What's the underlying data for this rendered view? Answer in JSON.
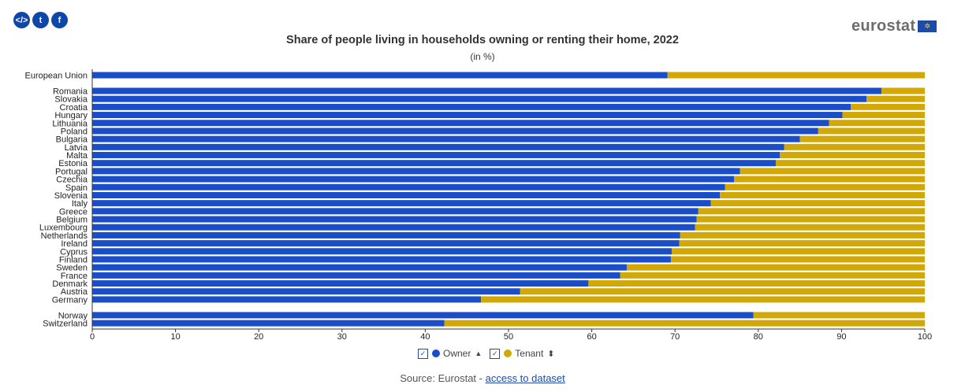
{
  "share_icons": [
    {
      "name": "embed-icon",
      "glyph": "</>"
    },
    {
      "name": "twitter-icon",
      "glyph": "t"
    },
    {
      "name": "facebook-icon",
      "glyph": "f"
    }
  ],
  "logo": {
    "text": "eurostat"
  },
  "colors": {
    "owner": "#1a4ec8",
    "tenant": "#d2a806"
  },
  "legend": {
    "owner": "Owner",
    "tenant": "Tenant",
    "owner_sort": "▲",
    "tenant_sort": "⬍",
    "check": "✓"
  },
  "source": {
    "prefix": "Source: Eurostat - ",
    "link": "access to dataset"
  },
  "chart_data": {
    "type": "bar",
    "orientation": "horizontal",
    "stacked": true,
    "title": "Share of people living in households owning or renting their home, 2022",
    "subtitle": "(in %)",
    "xlim": [
      0,
      100
    ],
    "xticks": [
      0,
      10,
      20,
      30,
      40,
      50,
      60,
      70,
      80,
      90,
      100
    ],
    "grid": false,
    "legend_position": "bottom",
    "groups": [
      {
        "categories": [
          "European Union"
        ]
      },
      {
        "categories": [
          "Romania",
          "Slovakia",
          "Croatia",
          "Hungary",
          "Lithuania",
          "Poland",
          "Bulgaria",
          "Latvia",
          "Malta",
          "Estonia",
          "Portugal",
          "Czechia",
          "Spain",
          "Slovenia",
          "Italy",
          "Greece",
          "Belgium",
          "Luxembourg",
          "Netherlands",
          "Ireland",
          "Cyprus",
          "Finland",
          "Sweden",
          "France",
          "Denmark",
          "Austria",
          "Germany"
        ]
      },
      {
        "categories": [
          "Norway",
          "Switzerland"
        ]
      }
    ],
    "categories": [
      "European Union",
      "Romania",
      "Slovakia",
      "Croatia",
      "Hungary",
      "Lithuania",
      "Poland",
      "Bulgaria",
      "Latvia",
      "Malta",
      "Estonia",
      "Portugal",
      "Czechia",
      "Spain",
      "Slovenia",
      "Italy",
      "Greece",
      "Belgium",
      "Luxembourg",
      "Netherlands",
      "Ireland",
      "Cyprus",
      "Finland",
      "Sweden",
      "France",
      "Denmark",
      "Austria",
      "Germany",
      "Norway",
      "Switzerland"
    ],
    "series": [
      {
        "name": "Owner",
        "values": [
          69.1,
          94.8,
          93.0,
          91.1,
          90.1,
          88.5,
          87.2,
          85.0,
          83.1,
          82.6,
          82.1,
          77.8,
          77.1,
          76.0,
          75.4,
          74.3,
          72.8,
          72.6,
          72.4,
          70.6,
          70.5,
          69.6,
          69.5,
          64.2,
          63.4,
          59.6,
          51.4,
          46.7,
          79.4,
          42.3
        ]
      },
      {
        "name": "Tenant",
        "values": [
          30.9,
          5.2,
          7.0,
          8.9,
          9.9,
          11.5,
          12.8,
          15.0,
          16.9,
          17.4,
          17.9,
          22.2,
          22.9,
          24.0,
          24.6,
          25.7,
          27.2,
          27.4,
          27.6,
          29.4,
          29.5,
          30.4,
          30.5,
          35.8,
          36.6,
          40.4,
          48.6,
          53.3,
          20.6,
          57.7
        ]
      }
    ]
  }
}
